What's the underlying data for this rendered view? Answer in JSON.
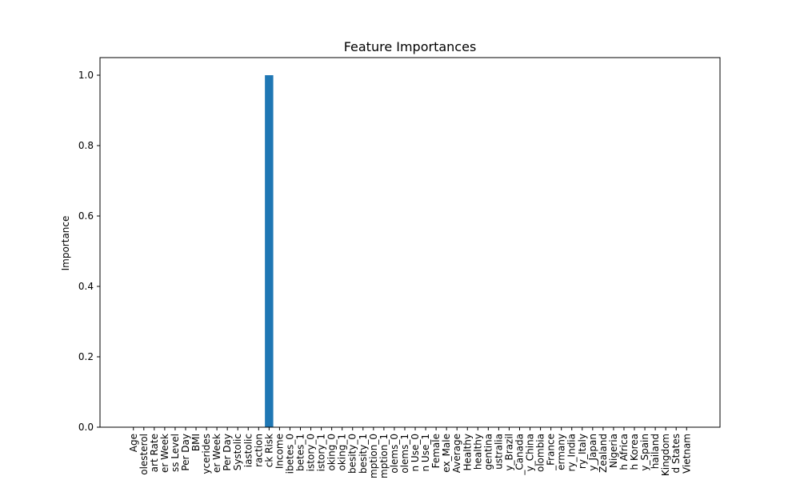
{
  "chart_data": {
    "type": "bar",
    "title": "Feature Importances",
    "xlabel": "",
    "ylabel": "Importance",
    "ylim": [
      0,
      1.05
    ],
    "yticks": [
      0.0,
      0.2,
      0.4,
      0.6,
      0.8,
      1.0
    ],
    "ytick_labels": [
      "0.0",
      "0.2",
      "0.4",
      "0.6",
      "0.8",
      "1.0"
    ],
    "grid": false,
    "bar_color": "#1f77b4",
    "categories": [
      "Age",
      "olesterol",
      "art Rate",
      "er Week",
      "ss Level",
      "Per Day",
      "BMI",
      "ycerides",
      "er Week",
      "Per Day",
      "Systolic",
      "iastolic",
      "raction",
      "ck Risk",
      "Income",
      "ibetes_0",
      "betes_1",
      "istory_0",
      "istory_1",
      "oking_0",
      "oking_1",
      "besity_0",
      "besity_1",
      "mption_0",
      "mption_1",
      "olems_0",
      "olems_1",
      "n Use_0",
      "n Use_1",
      "Female",
      "ex_Male",
      "Average",
      "Healthy",
      "healthy",
      "gentina",
      "ustralia",
      "y_Brazil",
      "_Canada",
      "y_China",
      "olombia",
      "_France",
      "ermany",
      "ry_India",
      "ry_Italy",
      "y_Japan",
      "Zealand",
      "Nigeria",
      "h Africa",
      "h Korea",
      "y_Spain",
      "hailand",
      "Kingdom",
      "d States",
      "Vietnam"
    ],
    "values": [
      0,
      0,
      0,
      0,
      0,
      0,
      0,
      0,
      0,
      0,
      0,
      0,
      0,
      1.0,
      0,
      0,
      0,
      0,
      0,
      0,
      0,
      0,
      0,
      0,
      0,
      0,
      0,
      0,
      0,
      0,
      0,
      0,
      0,
      0,
      0,
      0,
      0,
      0,
      0,
      0,
      0,
      0,
      0,
      0,
      0,
      0,
      0,
      0,
      0,
      0,
      0,
      0,
      0,
      0
    ]
  }
}
